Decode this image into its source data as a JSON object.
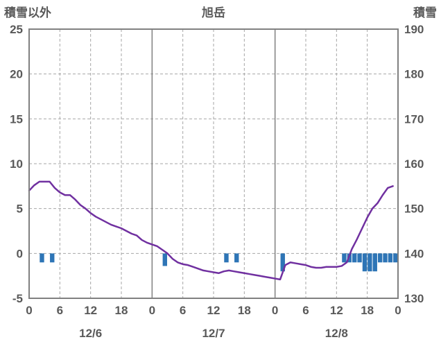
{
  "colors": {
    "text": "#595959",
    "border": "#808080",
    "grid": "#a6a6a6",
    "line": "#7030a0",
    "bar": "#2e75b6"
  },
  "chart_data": {
    "type": "line+bar",
    "title": "旭岳",
    "left_axis": {
      "title": "積雪以外",
      "min": -5,
      "max": 25,
      "ticks": [
        25,
        20,
        15,
        10,
        5,
        0,
        -5
      ]
    },
    "right_axis": {
      "title": "積雪",
      "min": 130,
      "max": 190,
      "ticks": [
        190,
        180,
        170,
        160,
        150,
        140,
        130
      ]
    },
    "x_axis": {
      "min_hour": 0,
      "max_hour": 72,
      "tick_hours": [
        0,
        6,
        12,
        18,
        24,
        30,
        36,
        42,
        48,
        54,
        60,
        66,
        72
      ],
      "tick_labels": [
        "0",
        "6",
        "12",
        "18",
        "0",
        "6",
        "12",
        "18",
        "0",
        "6",
        "12",
        "18",
        "0"
      ],
      "day_labels": [
        {
          "label": "12/6",
          "hour": 12
        },
        {
          "label": "12/7",
          "hour": 36
        },
        {
          "label": "12/8",
          "hour": 60
        }
      ]
    },
    "line": {
      "axis": "left",
      "start_hour": 0,
      "values": [
        7.0,
        7.6,
        8.0,
        8.0,
        8.0,
        7.3,
        6.8,
        6.5,
        6.5,
        6.0,
        5.4,
        5.0,
        4.5,
        4.1,
        3.8,
        3.5,
        3.2,
        3.0,
        2.8,
        2.5,
        2.2,
        2.0,
        1.5,
        1.2,
        1.0,
        0.8,
        0.4,
        0.0,
        -0.6,
        -1.0,
        -1.2,
        -1.3,
        -1.5,
        -1.7,
        -1.9,
        -2.0,
        -2.1,
        -2.2,
        -2.0,
        -1.9,
        -2.0,
        -2.1,
        -2.2,
        -2.3,
        -2.4,
        -2.5,
        -2.6,
        -2.7,
        -2.8,
        -2.9,
        -1.3,
        -1.0,
        -1.1,
        -1.2,
        -1.3,
        -1.5,
        -1.6,
        -1.6,
        -1.5,
        -1.5,
        -1.5,
        -1.4,
        -1.0,
        0.5,
        1.6,
        2.8,
        4.0,
        5.0,
        5.6,
        6.5,
        7.3,
        7.5
      ]
    },
    "bars": [
      {
        "hour": 2,
        "value": -1.0
      },
      {
        "hour": 4,
        "value": -1.0
      },
      {
        "hour": 26,
        "value": -1.4
      },
      {
        "hour": 38,
        "value": -1.0
      },
      {
        "hour": 40,
        "value": -1.0
      },
      {
        "hour": 49,
        "value": -2.0
      },
      {
        "hour": 61,
        "value": -1.0
      },
      {
        "hour": 62,
        "value": -1.0
      },
      {
        "hour": 63,
        "value": -1.0
      },
      {
        "hour": 64,
        "value": -1.0
      },
      {
        "hour": 65,
        "value": -2.0
      },
      {
        "hour": 66,
        "value": -2.0
      },
      {
        "hour": 67,
        "value": -2.0
      },
      {
        "hour": 68,
        "value": -1.0
      },
      {
        "hour": 69,
        "value": -1.0
      },
      {
        "hour": 70,
        "value": -1.0
      },
      {
        "hour": 71,
        "value": -1.0
      }
    ]
  }
}
